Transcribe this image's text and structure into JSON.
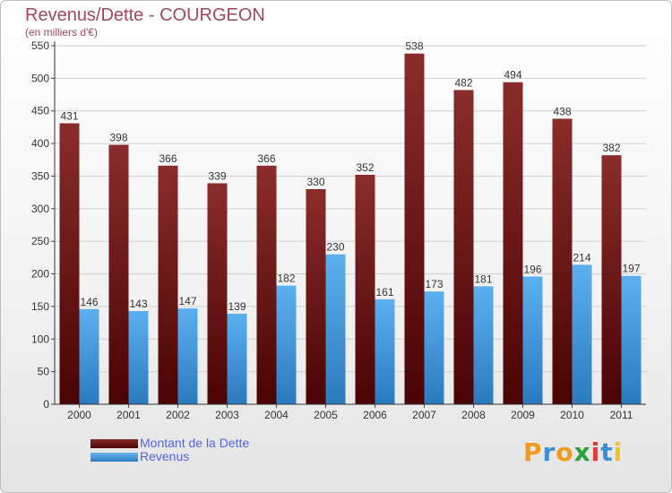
{
  "header": {
    "title": "Revenus/Dette - COURGEON",
    "subtitle": "(en milliers d'€)"
  },
  "legend": {
    "dette_label": "Montant de la Dette",
    "revenus_label": "Revenus"
  },
  "logo": {
    "text": "Proxiti",
    "letters": [
      "P",
      "r",
      "o",
      "x",
      "i",
      "t",
      "i"
    ],
    "colors": [
      "#f29a1f",
      "#3b8fd4",
      "#f29a1f",
      "#2e9f3e",
      "#e23b3b",
      "#3b8fd4",
      "#f2c21f"
    ]
  },
  "colors": {
    "dette": "#7d2323",
    "revenus": "#4fa3e6",
    "title": "#a3485a",
    "legend_text": "#5566dd"
  },
  "chart_data": {
    "type": "bar",
    "title": "Revenus/Dette - COURGEON",
    "ylabel": "(en milliers d'€)",
    "xlabel": "",
    "categories": [
      "2000",
      "2001",
      "2002",
      "2003",
      "2004",
      "2005",
      "2006",
      "2007",
      "2008",
      "2009",
      "2010",
      "2011"
    ],
    "series": [
      {
        "name": "Montant de la Dette",
        "values": [
          431,
          398,
          366,
          339,
          366,
          330,
          352,
          538,
          482,
          494,
          438,
          382
        ]
      },
      {
        "name": "Revenus",
        "values": [
          146,
          143,
          147,
          139,
          182,
          230,
          161,
          173,
          181,
          196,
          214,
          197
        ]
      }
    ],
    "ylim": [
      0,
      550
    ],
    "yticks": [
      0,
      50,
      100,
      150,
      200,
      250,
      300,
      350,
      400,
      450,
      500,
      550
    ],
    "grid": true,
    "legend_position": "bottom-left"
  }
}
